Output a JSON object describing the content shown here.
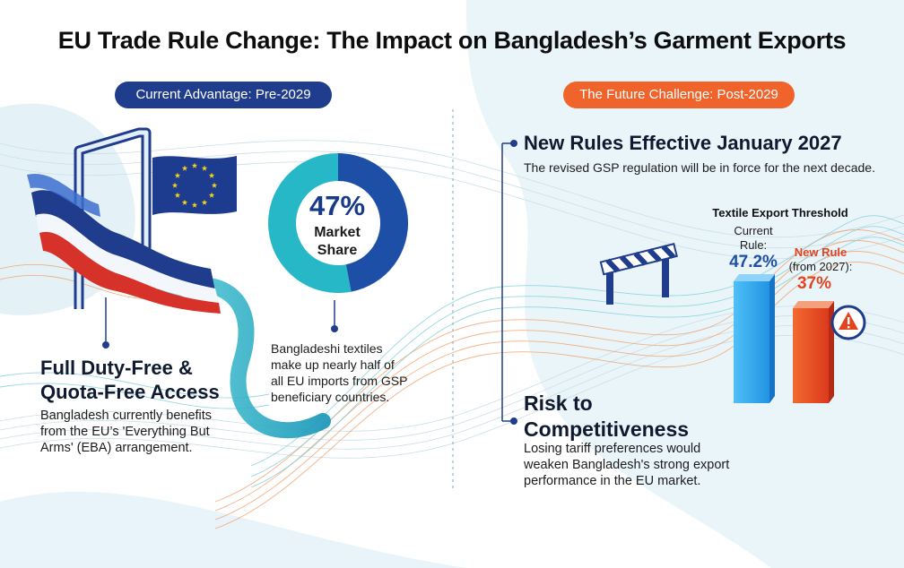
{
  "title": "EU Trade Rule Change: The Impact on Bangladesh’s Garment Exports",
  "left": {
    "pill": "Current Advantage: Pre-2029",
    "heading_line1": "Full Duty-Free &",
    "heading_line2": "Quota-Free Access",
    "body_line1": "Bangladesh currently benefits",
    "body_line2": "from the EU’s 'Everything But",
    "body_line3": "Arms' (EBA) arrangement.",
    "donut": {
      "value": "47%",
      "label_line1": "Market",
      "label_line2": "Share",
      "fraction": 0.47
    },
    "donut_caption_line1": "Bangladeshi textiles",
    "donut_caption_line2": "make up nearly half of",
    "donut_caption_line3": "all EU imports from GSP",
    "donut_caption_line4": "beneficiary countries."
  },
  "right": {
    "pill": "The Future Challenge: Post-2029",
    "rules_heading": "New Rules Effective January 2027",
    "rules_body": "The revised GSP regulation will be in force for the next decade.",
    "threshold_title": "Textile Export Threshold",
    "current_label_line1": "Current",
    "current_label_line2": "Rule:",
    "current_value": "47.2%",
    "new_label_line1": "New Rule",
    "new_label_line2": "(from 2027):",
    "new_value": "37%",
    "risk_heading_line1": "Risk to",
    "risk_heading_line2": "Competitiveness",
    "risk_body_line1": "Losing tariff preferences would",
    "risk_body_line2": "weaken Bangladesh's strong export",
    "risk_body_line3": "performance in the EU market."
  },
  "colors": {
    "navy": "#1f3d8c",
    "orange": "#f0632a",
    "teal": "#1bb5c4",
    "blue_bar": "#2aa7ee",
    "red_bar": "#ec4422",
    "eu_blue": "#1d3b8f",
    "eu_star": "#f6d21a"
  },
  "icons": [
    "eu-flag-icon",
    "gate-arch-icon",
    "barrier-icon",
    "warning-icon"
  ]
}
